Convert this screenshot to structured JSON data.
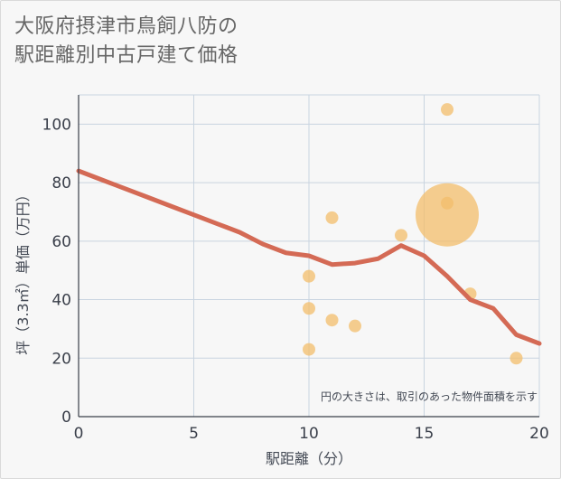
{
  "title_lines": [
    "大阪府摂津市鳥飼八防の",
    "駅距離別中古戸建て価格"
  ],
  "note": "円の大きさは、取引のあった物件面積を示す",
  "chart_data": {
    "type": "scatter",
    "title": "大阪府摂津市鳥飼八防の駅距離別中古戸建て価格",
    "xlabel": "駅距離（分）",
    "ylabel": "坪（3.3㎡）単価（万円）",
    "xlim": [
      0,
      20
    ],
    "ylim": [
      0,
      110
    ],
    "xticks": [
      0,
      5,
      10,
      15,
      20
    ],
    "yticks": [
      0,
      20,
      40,
      60,
      80,
      100
    ],
    "grid": true,
    "colors": {
      "bubble": "#f3bd6b",
      "line": "#d46a55",
      "background": "#f7f7f7",
      "grid": "#c9d4e0"
    },
    "points": [
      {
        "x": 10,
        "y": 48,
        "size": 1
      },
      {
        "x": 10,
        "y": 37,
        "size": 1
      },
      {
        "x": 10,
        "y": 23,
        "size": 1
      },
      {
        "x": 11,
        "y": 68,
        "size": 1
      },
      {
        "x": 11,
        "y": 33,
        "size": 1
      },
      {
        "x": 12,
        "y": 31,
        "size": 1
      },
      {
        "x": 14,
        "y": 62,
        "size": 1
      },
      {
        "x": 16,
        "y": 105,
        "size": 1
      },
      {
        "x": 16,
        "y": 73,
        "size": 1
      },
      {
        "x": 16,
        "y": 69,
        "size": 5
      },
      {
        "x": 17,
        "y": 42,
        "size": 1
      },
      {
        "x": 19,
        "y": 20,
        "size": 1
      }
    ],
    "trend_line": {
      "x": [
        0,
        1,
        2,
        3,
        4,
        5,
        6,
        7,
        8,
        9,
        10,
        11,
        12,
        13,
        14,
        15,
        16,
        17,
        18,
        19,
        20
      ],
      "y": [
        84,
        81,
        78,
        75,
        72,
        69,
        66,
        63,
        59,
        56,
        55,
        52,
        52.5,
        54,
        58.5,
        55,
        48,
        40,
        37,
        28,
        25
      ]
    }
  }
}
